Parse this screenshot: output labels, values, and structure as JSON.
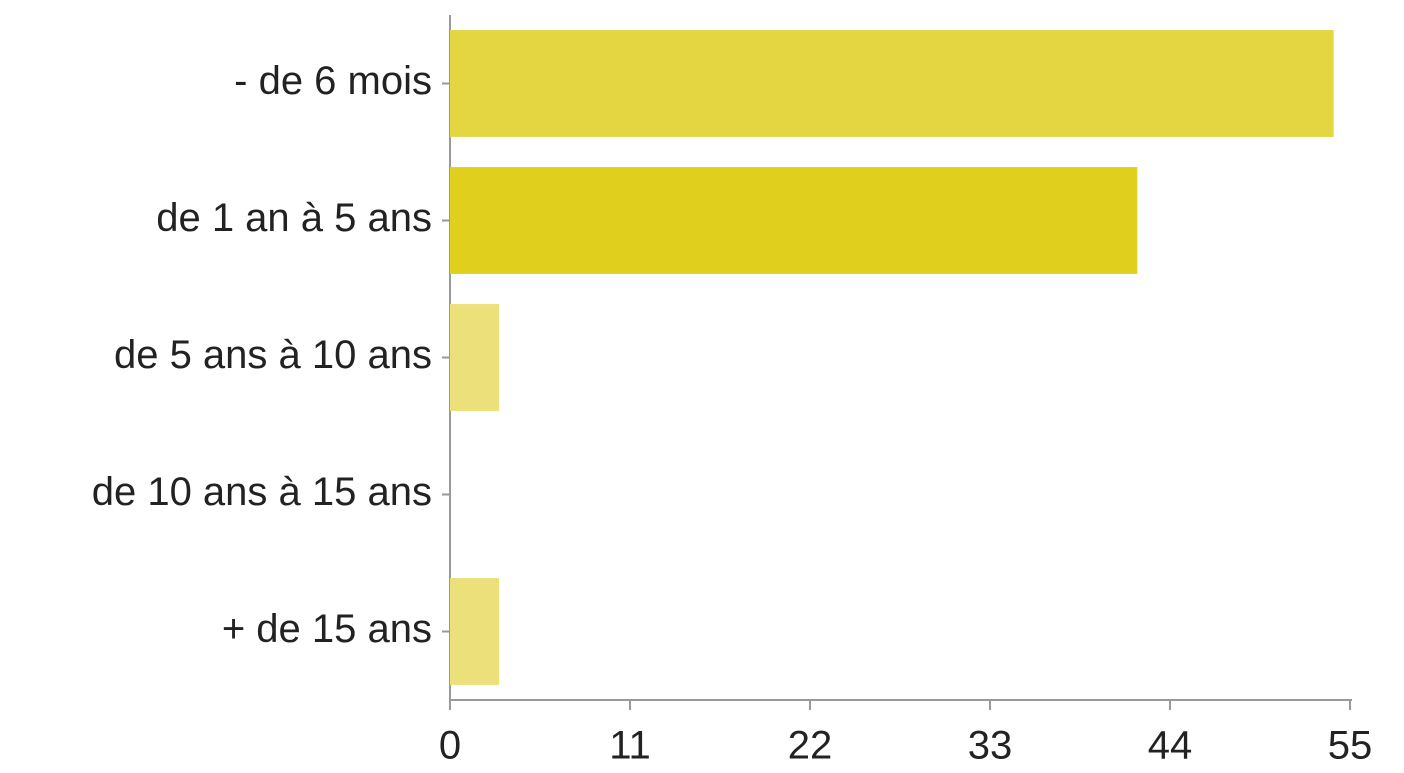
{
  "chart_data": {
    "type": "bar",
    "orientation": "horizontal",
    "categories": [
      "- de 6 mois",
      "de 1 an à 5 ans",
      "de 5 ans à 10 ans",
      "de 10 ans à 15 ans",
      "+ de 15 ans"
    ],
    "values": [
      54,
      42,
      3,
      0,
      3
    ],
    "colors": [
      "#e3d641",
      "#e0cf1c",
      "#ece07a",
      "#ece07a",
      "#ece07a"
    ],
    "xlim": [
      0,
      55
    ],
    "xticks": [
      0,
      11,
      22,
      33,
      44,
      55
    ],
    "grid": false
  }
}
